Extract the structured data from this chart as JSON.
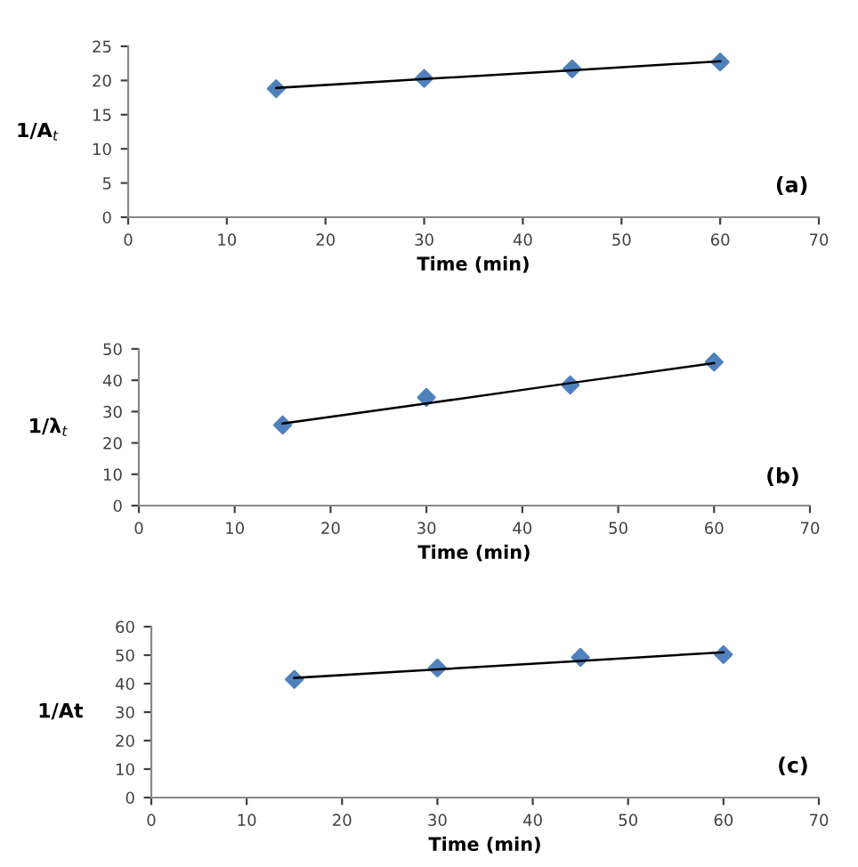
{
  "chart_data": [
    {
      "type": "scatter",
      "xlabel": "Time (min)",
      "ylabel": "1/A$_{t}$",
      "annotations": [
        "(a)"
      ],
      "x": [
        15,
        30,
        45,
        60
      ],
      "xlim": [
        0,
        70
      ],
      "xticks": [
        0,
        10,
        20,
        30,
        40,
        50,
        60,
        70
      ],
      "ylim": [
        0,
        25
      ],
      "yticks": [
        0,
        5,
        10,
        15,
        20,
        25
      ],
      "grid": false,
      "marker": "diamond",
      "series": [
        {
          "color": "#4f81bd",
          "values": [
            18.8,
            20.3,
            21.7,
            22.7
          ]
        },
        {
          "type": "line",
          "color": "#000000",
          "values": [
            18.9,
            20.2,
            21.5,
            22.8
          ],
          "marker": "none",
          "line_style": "solid"
        }
      ]
    },
    {
      "type": "scatter",
      "xlabel": "Time (min)",
      "ylabel": "1/λ$_{t}$",
      "annotations": [
        "(b)"
      ],
      "x": [
        15,
        30,
        45,
        60
      ],
      "xlim": [
        0,
        70
      ],
      "xticks": [
        0,
        10,
        20,
        30,
        40,
        50,
        60,
        70
      ],
      "ylim": [
        0,
        50
      ],
      "yticks": [
        0,
        10,
        20,
        30,
        40,
        50
      ],
      "grid": false,
      "marker": "diamond",
      "series": [
        {
          "color": "#4f81bd",
          "values": [
            25.7,
            34.5,
            38.5,
            45.8
          ]
        },
        {
          "type": "line",
          "color": "#000000",
          "values": [
            26.2,
            32.6,
            39.1,
            45.5
          ],
          "marker": "none",
          "line_style": "solid"
        }
      ]
    },
    {
      "type": "scatter",
      "xlabel": "Time (min)",
      "ylabel": "1/At",
      "annotations": [
        "(c)"
      ],
      "x": [
        15,
        30,
        45,
        60
      ],
      "xlim": [
        0,
        70
      ],
      "xticks": [
        0,
        10,
        20,
        30,
        40,
        50,
        60,
        70
      ],
      "ylim": [
        0,
        60
      ],
      "yticks": [
        0,
        10,
        20,
        30,
        40,
        50,
        60
      ],
      "grid": false,
      "marker": "diamond",
      "series": [
        {
          "color": "#4f81bd",
          "values": [
            41.5,
            45.5,
            49.2,
            50.2
          ]
        },
        {
          "type": "line",
          "color": "#000000",
          "values": [
            42.0,
            45.0,
            48.0,
            51.0
          ],
          "marker": "none",
          "line_style": "solid"
        }
      ]
    }
  ]
}
